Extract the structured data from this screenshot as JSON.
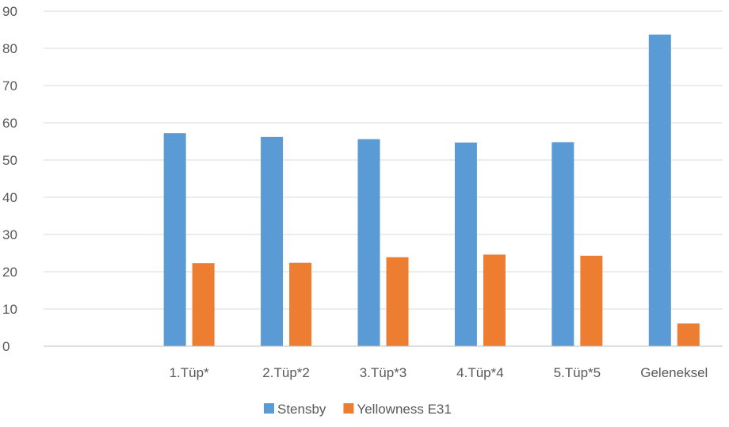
{
  "chart_data": {
    "type": "bar",
    "title": "",
    "xlabel": "",
    "ylabel": "",
    "categories": [
      "",
      "1.Tüp*",
      "2.Tüp*2",
      "3.Tüp*3",
      "4.Tüp*4",
      "5.Tüp*5",
      "Geleneksel"
    ],
    "series": [
      {
        "name": "Stensby",
        "color": "#5b9bd5",
        "values": [
          null,
          57.2,
          56.2,
          55.6,
          54.7,
          54.8,
          83.7
        ]
      },
      {
        "name": "Yellowness E31",
        "color": "#ed7d31",
        "values": [
          null,
          22.3,
          22.4,
          23.9,
          24.6,
          24.3,
          6.1
        ]
      }
    ],
    "yticks": [
      0,
      10,
      20,
      30,
      40,
      50,
      60,
      70,
      80,
      90
    ],
    "ylim": [
      0,
      90
    ],
    "grid": true,
    "legend_position": "bottom"
  }
}
